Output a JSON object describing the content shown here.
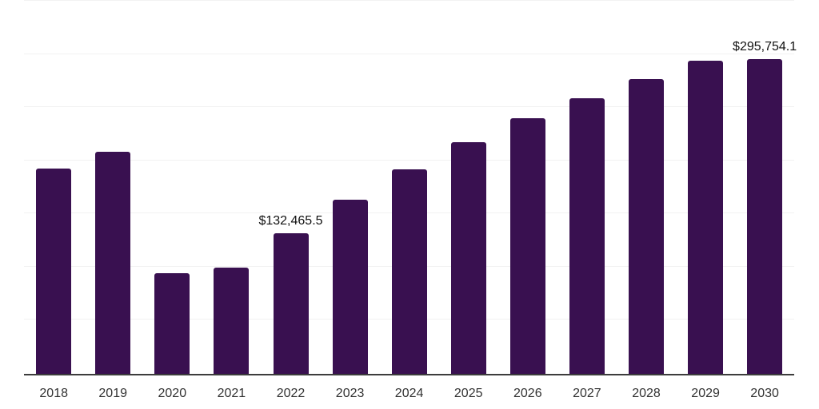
{
  "chart": {
    "background": "#ffffff",
    "bar_color": "#391050",
    "axis_line_color": "#3c3c3c",
    "gridline_color": "#f2f2f2",
    "tick_label_color": "#333333",
    "data_label_color": "#111111"
  },
  "chart_data": {
    "type": "bar",
    "title": "",
    "xlabel": "",
    "ylabel": "",
    "categories": [
      "2018",
      "2019",
      "2020",
      "2021",
      "2022",
      "2023",
      "2024",
      "2025",
      "2026",
      "2027",
      "2028",
      "2029",
      "2030"
    ],
    "values": [
      193000,
      208900,
      94900,
      99800,
      132465.5,
      164000,
      192400,
      217900,
      240400,
      259100,
      277100,
      294100,
      295754.1
    ],
    "bar_labels": [
      "",
      "",
      "",
      "",
      "$132,465.5",
      "",
      "",
      "",
      "",
      "",
      "",
      "",
      "$295,754.1"
    ],
    "ylim": [
      0,
      350000
    ],
    "gridline_interval": 50000,
    "grid": true,
    "legend": false,
    "y_axis_tick_labels_visible": false,
    "currency_prefix": "$"
  }
}
